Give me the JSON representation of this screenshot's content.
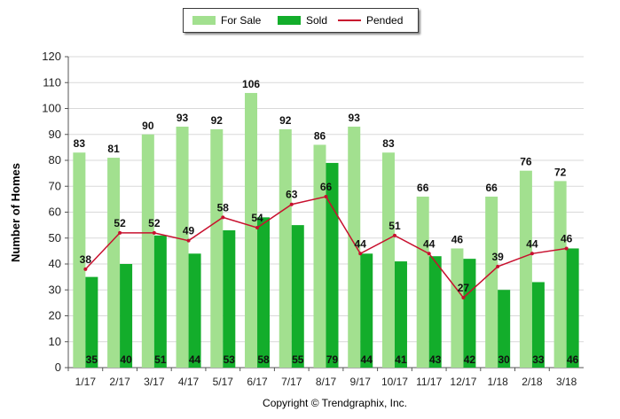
{
  "chart_data": {
    "type": "bar",
    "categories": [
      "1/17",
      "2/17",
      "3/17",
      "4/17",
      "5/17",
      "6/17",
      "7/17",
      "8/17",
      "9/17",
      "10/17",
      "11/17",
      "12/17",
      "1/18",
      "2/18",
      "3/18"
    ],
    "series": [
      {
        "name": "For Sale",
        "kind": "bar",
        "color": "#a2e08f",
        "values": [
          83,
          81,
          90,
          93,
          92,
          106,
          92,
          86,
          93,
          83,
          66,
          46,
          66,
          76,
          72
        ]
      },
      {
        "name": "Sold",
        "kind": "bar",
        "color": "#13ad2b",
        "values": [
          35,
          40,
          51,
          44,
          53,
          58,
          55,
          79,
          44,
          41,
          43,
          42,
          30,
          33,
          46
        ]
      },
      {
        "name": "Pended",
        "kind": "line",
        "color": "#c8102e",
        "values": [
          38,
          52,
          52,
          49,
          58,
          54,
          63,
          66,
          44,
          51,
          44,
          27,
          39,
          44,
          46
        ]
      }
    ],
    "ylabel": "Number of Homes",
    "xlabel": "",
    "ylim": [
      0,
      120
    ],
    "yticks": [
      0,
      10,
      20,
      30,
      40,
      50,
      60,
      70,
      80,
      90,
      100,
      110,
      120
    ],
    "grid": true,
    "legend_position": "top-center"
  },
  "footer": {
    "copyright": "Copyright © Trendgraphix, Inc."
  }
}
